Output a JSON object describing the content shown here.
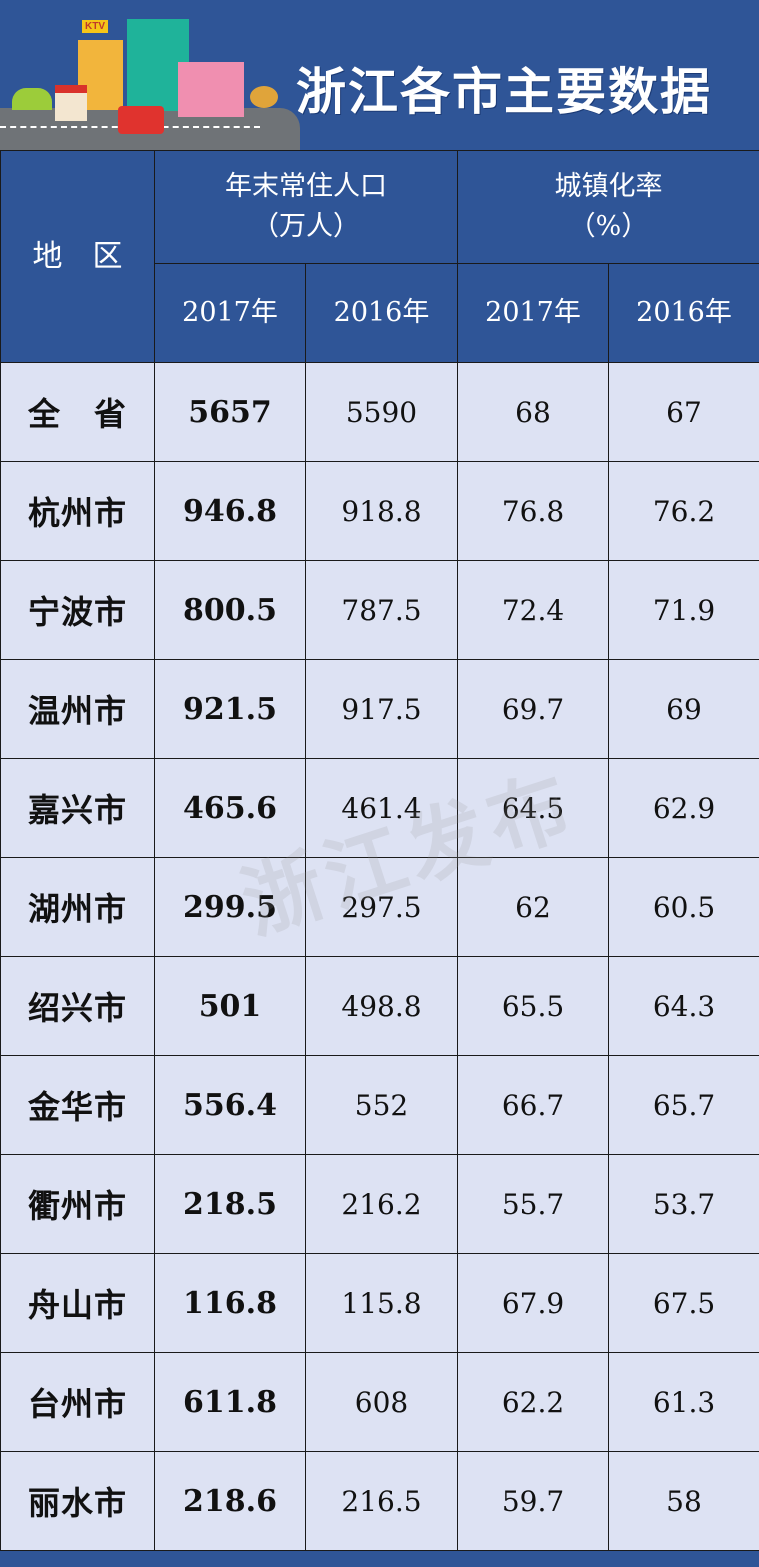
{
  "banner": {
    "title": "浙江各市主要数据",
    "sign": "KTV"
  },
  "watermark": "浙江发布",
  "colors": {
    "header_bg": "#2f5597",
    "row_bg": "#dde2f3"
  },
  "table": {
    "region_header": "地　区",
    "groups": [
      {
        "label": "年末常住人口",
        "unit": "（万人）"
      },
      {
        "label": "城镇化率",
        "unit": "（%）"
      }
    ],
    "year_headers": [
      "2017年",
      "2016年",
      "2017年",
      "2016年"
    ],
    "rows": [
      {
        "region": "全　省",
        "pop2017": "5657",
        "pop2016": "5590",
        "urb2017": "68",
        "urb2016": "67"
      },
      {
        "region": "杭州市",
        "pop2017": "946.8",
        "pop2016": "918.8",
        "urb2017": "76.8",
        "urb2016": "76.2"
      },
      {
        "region": "宁波市",
        "pop2017": "800.5",
        "pop2016": "787.5",
        "urb2017": "72.4",
        "urb2016": "71.9"
      },
      {
        "region": "温州市",
        "pop2017": "921.5",
        "pop2016": "917.5",
        "urb2017": "69.7",
        "urb2016": "69"
      },
      {
        "region": "嘉兴市",
        "pop2017": "465.6",
        "pop2016": "461.4",
        "urb2017": "64.5",
        "urb2016": "62.9"
      },
      {
        "region": "湖州市",
        "pop2017": "299.5",
        "pop2016": "297.5",
        "urb2017": "62",
        "urb2016": "60.5"
      },
      {
        "region": "绍兴市",
        "pop2017": "501",
        "pop2016": "498.8",
        "urb2017": "65.5",
        "urb2016": "64.3"
      },
      {
        "region": "金华市",
        "pop2017": "556.4",
        "pop2016": "552",
        "urb2017": "66.7",
        "urb2016": "65.7"
      },
      {
        "region": "衢州市",
        "pop2017": "218.5",
        "pop2016": "216.2",
        "urb2017": "55.7",
        "urb2016": "53.7"
      },
      {
        "region": "舟山市",
        "pop2017": "116.8",
        "pop2016": "115.8",
        "urb2017": "67.9",
        "urb2016": "67.5"
      },
      {
        "region": "台州市",
        "pop2017": "611.8",
        "pop2016": "608",
        "urb2017": "62.2",
        "urb2016": "61.3"
      },
      {
        "region": "丽水市",
        "pop2017": "218.6",
        "pop2016": "216.5",
        "urb2017": "59.7",
        "urb2016": "58"
      }
    ]
  }
}
